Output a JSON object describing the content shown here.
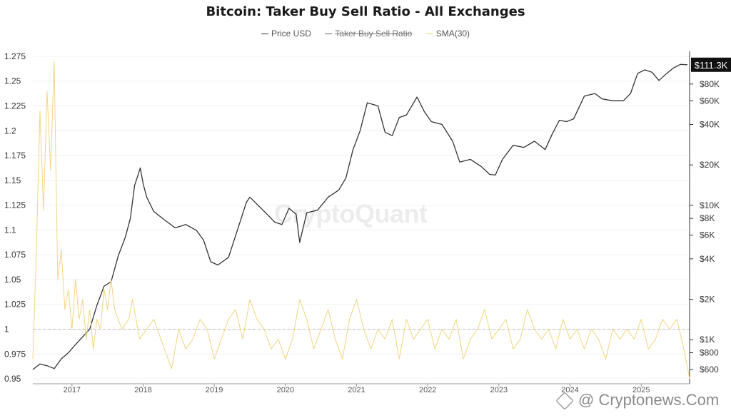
{
  "chart_data": {
    "type": "line",
    "title": "Bitcoin: Taker Buy Sell Ratio - All Exchanges",
    "legend": {
      "placement": "top-center",
      "items": [
        {
          "name": "Price USD",
          "color": "#333333",
          "enabled": true
        },
        {
          "name": "Taker Buy Sell Ratio",
          "color": "#555555",
          "enabled": false
        },
        {
          "name": "SMA(30)",
          "color": "#f2d27a",
          "enabled": true
        }
      ]
    },
    "x_axis": {
      "ticks": [
        "2017",
        "2018",
        "2019",
        "2020",
        "2021",
        "2022",
        "2023",
        "2024",
        "2025"
      ],
      "range": [
        2016.45,
        2025.68
      ]
    },
    "y_left": {
      "ticks": [
        0.95,
        0.975,
        1,
        1.025,
        1.05,
        1.075,
        1.1,
        1.125,
        1.15,
        1.175,
        1.2,
        1.225,
        1.25,
        1.275
      ],
      "tick_labels": [
        "0.95",
        "0.975",
        "1",
        "1.025",
        "1.05",
        "1.075",
        "1.1",
        "1.125",
        "1.15",
        "1.175",
        "1.2",
        "1.225",
        "1.25",
        "1.275"
      ],
      "range": [
        0.945,
        1.28
      ],
      "reference_line": 1
    },
    "y_right": {
      "scale": "log",
      "ticks": [
        600,
        800,
        1000,
        2000,
        4000,
        6000,
        8000,
        10000,
        20000,
        40000,
        60000,
        80000
      ],
      "tick_labels": [
        "$600",
        "$800",
        "$1K",
        "$2K",
        "$4K",
        "$6K",
        "$8K",
        "$10K",
        "$20K",
        "$40K",
        "$60K",
        "$80K"
      ],
      "range": [
        470,
        140000
      ],
      "current_value_label": "$111.3K"
    },
    "series": [
      {
        "name": "Price USD",
        "axis": "right",
        "x": [
          2016.45,
          2016.55,
          2016.65,
          2016.75,
          2016.85,
          2016.95,
          2017.05,
          2017.15,
          2017.25,
          2017.35,
          2017.45,
          2017.55,
          2017.65,
          2017.75,
          2017.82,
          2017.88,
          2017.96,
          2018.0,
          2018.05,
          2018.15,
          2018.3,
          2018.45,
          2018.6,
          2018.75,
          2018.85,
          2018.95,
          2019.05,
          2019.2,
          2019.35,
          2019.45,
          2019.5,
          2019.6,
          2019.75,
          2019.85,
          2019.95,
          2020.05,
          2020.15,
          2020.2,
          2020.3,
          2020.45,
          2020.6,
          2020.75,
          2020.85,
          2020.95,
          2021.05,
          2021.15,
          2021.3,
          2021.4,
          2021.5,
          2021.6,
          2021.7,
          2021.85,
          2021.95,
          2022.05,
          2022.2,
          2022.35,
          2022.45,
          2022.6,
          2022.75,
          2022.87,
          2022.95,
          2023.05,
          2023.2,
          2023.35,
          2023.5,
          2023.65,
          2023.75,
          2023.85,
          2023.95,
          2024.05,
          2024.2,
          2024.35,
          2024.45,
          2024.6,
          2024.75,
          2024.85,
          2024.95,
          2025.05,
          2025.15,
          2025.25,
          2025.35,
          2025.45,
          2025.55,
          2025.65
        ],
        "values": [
          600,
          660,
          640,
          610,
          720,
          800,
          920,
          1050,
          1200,
          1800,
          2500,
          2700,
          4200,
          5800,
          8000,
          14000,
          19000,
          14500,
          11500,
          9000,
          7800,
          6800,
          7200,
          6500,
          5500,
          3800,
          3600,
          4100,
          7200,
          10500,
          11500,
          10200,
          8500,
          7500,
          7200,
          9500,
          8600,
          5300,
          8800,
          9200,
          11500,
          13000,
          16000,
          26000,
          36000,
          58000,
          55000,
          35000,
          33000,
          45000,
          47000,
          64000,
          50000,
          42000,
          40000,
          30000,
          21000,
          22000,
          19500,
          17000,
          16800,
          22000,
          28000,
          27000,
          30000,
          26000,
          34000,
          43000,
          42000,
          44000,
          65000,
          68000,
          62000,
          60000,
          60000,
          68000,
          96000,
          102000,
          98000,
          85000,
          95000,
          105000,
          112000,
          111300
        ]
      },
      {
        "name": "SMA(30)",
        "axis": "left",
        "x": [
          2016.45,
          2016.5,
          2016.55,
          2016.6,
          2016.65,
          2016.7,
          2016.75,
          2016.8,
          2016.85,
          2016.9,
          2016.95,
          2017.0,
          2017.05,
          2017.1,
          2017.15,
          2017.2,
          2017.25,
          2017.3,
          2017.35,
          2017.4,
          2017.45,
          2017.5,
          2017.55,
          2017.6,
          2017.7,
          2017.8,
          2017.85,
          2017.95,
          2018.05,
          2018.15,
          2018.3,
          2018.4,
          2018.5,
          2018.6,
          2018.7,
          2018.8,
          2018.9,
          2019.0,
          2019.1,
          2019.2,
          2019.3,
          2019.4,
          2019.5,
          2019.6,
          2019.7,
          2019.8,
          2019.9,
          2020.0,
          2020.1,
          2020.2,
          2020.3,
          2020.4,
          2020.5,
          2020.6,
          2020.7,
          2020.8,
          2020.9,
          2021.0,
          2021.1,
          2021.2,
          2021.3,
          2021.4,
          2021.5,
          2021.6,
          2021.7,
          2021.8,
          2021.9,
          2022.0,
          2022.1,
          2022.2,
          2022.3,
          2022.4,
          2022.5,
          2022.6,
          2022.7,
          2022.8,
          2022.9,
          2023.0,
          2023.1,
          2023.2,
          2023.3,
          2023.4,
          2023.5,
          2023.6,
          2023.7,
          2023.8,
          2023.9,
          2024.0,
          2024.1,
          2024.2,
          2024.3,
          2024.4,
          2024.5,
          2024.6,
          2024.7,
          2024.8,
          2024.9,
          2025.0,
          2025.1,
          2025.2,
          2025.3,
          2025.4,
          2025.5,
          2025.6,
          2025.68
        ],
        "values": [
          0.97,
          1.08,
          1.22,
          1.12,
          1.24,
          1.16,
          1.27,
          1.05,
          1.08,
          1.02,
          1.04,
          1.0,
          1.05,
          1.01,
          1.03,
          0.99,
          1.02,
          0.98,
          1.01,
          1.0,
          1.04,
          1.02,
          1.05,
          1.02,
          1.0,
          1.01,
          1.03,
          0.99,
          1.0,
          1.01,
          0.98,
          0.96,
          1.0,
          0.98,
          0.99,
          1.01,
          1.0,
          0.97,
          0.99,
          1.01,
          1.02,
          0.99,
          1.03,
          1.01,
          1.0,
          0.98,
          0.99,
          0.97,
          0.99,
          1.03,
          1.01,
          0.98,
          1.0,
          1.02,
          0.99,
          0.97,
          1.01,
          1.03,
          1.0,
          0.98,
          1.0,
          0.99,
          1.01,
          0.97,
          1.01,
          0.99,
          1.0,
          1.01,
          0.98,
          1.0,
          0.99,
          1.01,
          0.97,
          0.99,
          1.0,
          1.02,
          0.99,
          1.0,
          1.01,
          0.98,
          0.99,
          1.02,
          1.0,
          0.99,
          1.0,
          0.98,
          1.01,
          0.99,
          1.0,
          0.98,
          1.0,
          0.99,
          0.97,
          1.0,
          0.99,
          1.0,
          0.99,
          1.01,
          0.98,
          0.99,
          1.01,
          1.0,
          1.01,
          0.98,
          0.95
        ]
      }
    ]
  },
  "watermark": "CryptoQuant",
  "credit": "@ Cryptonews.Com"
}
